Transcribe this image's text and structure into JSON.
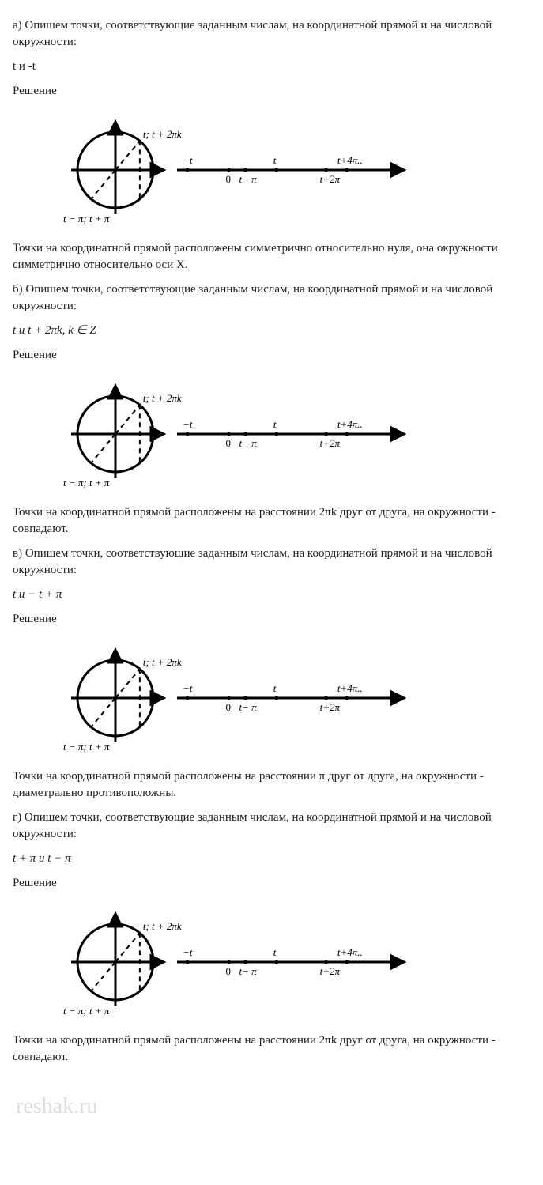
{
  "sections": {
    "a": {
      "intro": "а) Опишем точки, соответствующие заданным числам, на координатной прямой и на числовой окружности:",
      "given": "t и -t",
      "solution_label": "Решение",
      "conclusion": "Точки на координатной прямой расположены симметрично относительно нуля, она окружности симметрично относительно оси X."
    },
    "b": {
      "intro": "б) Опишем точки, соответствующие заданным числам, на координатной прямой и на числовой окружности:",
      "given": "t и t + 2πk, k ∈ Z",
      "solution_label": "Решение",
      "conclusion": "Точки на координатной прямой расположены на расстоянии 2πk  друг от друга, на окружности - совпадают."
    },
    "c": {
      "intro": "в) Опишем точки, соответствующие заданным числам, на координатной прямой и на числовой окружности:",
      "given": "t и  − t + π",
      "solution_label": "Решение",
      "conclusion": "Точки на координатной прямой расположены на расстоянии π  друг от друга, на окружности - диаметрально противоположны."
    },
    "d": {
      "intro": "г) Опишем точки, соответствующие заданным числам, на координатной прямой и на числовой окружности:",
      "given": "t + π и t − π",
      "solution_label": "Решение",
      "conclusion": "Точки на координатной прямой расположены на расстоянии 2πk  друг от друга, на окружности - совпадают."
    }
  },
  "figure": {
    "circle_label_top": "t; t + 2πk",
    "circle_label_bottom": "t − π; t + π",
    "line_labels": {
      "minus_t": "−t",
      "zero": "0",
      "t_minus_pi": "t− π",
      "t": "t",
      "t_plus_4pi": "t+4π..",
      "t_plus_2pi": "t+2π"
    },
    "colors": {
      "stroke": "#000000",
      "bg": "#ffffff",
      "text": "#000000"
    },
    "circle_radius": 48,
    "stroke_width": 3,
    "dash": "6,5",
    "font_size": 13
  },
  "watermark": "reshak.ru"
}
